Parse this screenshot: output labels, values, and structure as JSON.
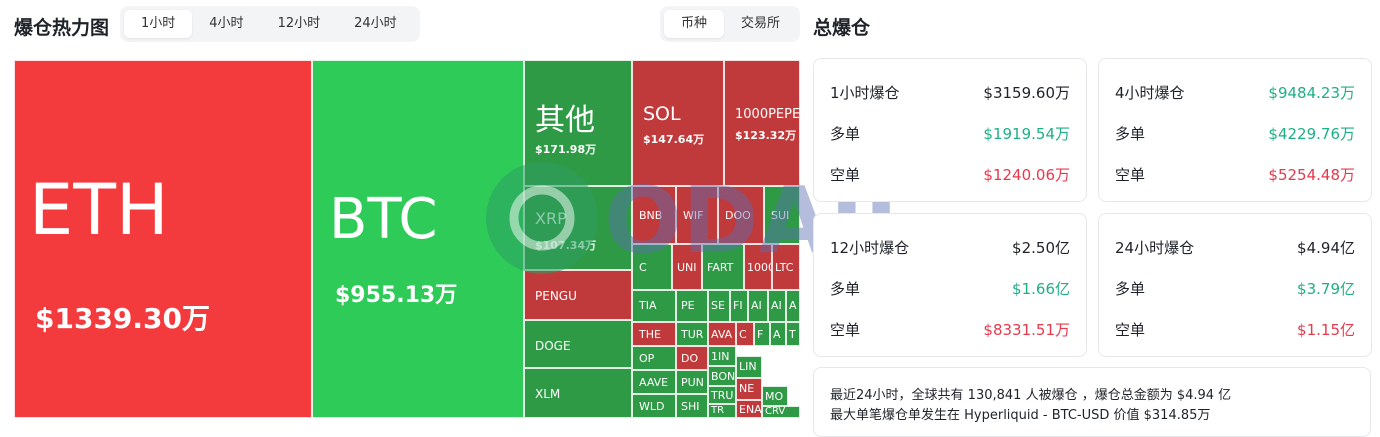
{
  "header": {
    "title": "爆仓热力图",
    "time_tabs": [
      "1小时",
      "4小时",
      "12小时",
      "24小时"
    ],
    "active_time_tab": "1小时",
    "group_tabs": [
      "币种",
      "交易所"
    ],
    "active_group_tab": "币种",
    "right_title": "总爆仓"
  },
  "treemap": {
    "colors": {
      "red": "#f33a3d",
      "green": "#2ecb59",
      "dark_red": "#c0393b",
      "dark_green": "#2f9a46"
    },
    "tiles": [
      {
        "symbol": "ETH",
        "value": "$1339.30万",
        "side": "short"
      },
      {
        "symbol": "BTC",
        "value": "$955.13万",
        "side": "long"
      },
      {
        "symbol": "其他",
        "value": "$171.98万",
        "side": "long"
      },
      {
        "symbol": "SOL",
        "value": "$147.64万",
        "side": "short"
      },
      {
        "symbol": "1000PEPE",
        "value": "$123.32万",
        "side": "short"
      },
      {
        "symbol": "XRP",
        "value": "$107.34万",
        "side": "long"
      },
      {
        "symbol": "PENGU",
        "value": "",
        "side": "short"
      },
      {
        "symbol": "DOGE",
        "value": "",
        "side": "long"
      },
      {
        "symbol": "XLM",
        "value": "",
        "side": "long"
      },
      {
        "symbol": "BNB",
        "value": "",
        "side": "short"
      },
      {
        "symbol": "WIF",
        "value": "",
        "side": "short"
      },
      {
        "symbol": "DOO",
        "value": "",
        "side": "short"
      },
      {
        "symbol": "SUI",
        "value": "",
        "side": "long"
      },
      {
        "symbol": "C",
        "value": "",
        "side": "long"
      },
      {
        "symbol": "UNI",
        "value": "",
        "side": "short"
      },
      {
        "symbol": "FART",
        "value": "",
        "side": "long"
      },
      {
        "symbol": "1000",
        "value": "",
        "side": "short"
      },
      {
        "symbol": "LTC",
        "value": "",
        "side": "short"
      },
      {
        "symbol": "TIA",
        "value": "",
        "side": "long"
      },
      {
        "symbol": "PE",
        "value": "",
        "side": "long"
      },
      {
        "symbol": "SE",
        "value": "",
        "side": "long"
      },
      {
        "symbol": "FI",
        "value": "",
        "side": "long"
      },
      {
        "symbol": "AI",
        "value": "",
        "side": "long"
      },
      {
        "symbol": "AI",
        "value": "",
        "side": "long"
      },
      {
        "symbol": "A",
        "value": "",
        "side": "long"
      },
      {
        "symbol": "THE",
        "value": "",
        "side": "short"
      },
      {
        "symbol": "TUR",
        "value": "",
        "side": "long"
      },
      {
        "symbol": "AVA",
        "value": "",
        "side": "short"
      },
      {
        "symbol": "C",
        "value": "",
        "side": "short"
      },
      {
        "symbol": "F",
        "value": "",
        "side": "long"
      },
      {
        "symbol": "A",
        "value": "",
        "side": "long"
      },
      {
        "symbol": "T",
        "value": "",
        "side": "long"
      },
      {
        "symbol": "OP",
        "value": "",
        "side": "long"
      },
      {
        "symbol": "DO",
        "value": "",
        "side": "short"
      },
      {
        "symbol": "1IN",
        "value": "",
        "side": "long"
      },
      {
        "symbol": "BON",
        "value": "",
        "side": "long"
      },
      {
        "symbol": "LIN",
        "value": "",
        "side": "long"
      },
      {
        "symbol": "NE",
        "value": "",
        "side": "short"
      },
      {
        "symbol": "AAVE",
        "value": "",
        "side": "long"
      },
      {
        "symbol": "PUN",
        "value": "",
        "side": "long"
      },
      {
        "symbol": "TRU",
        "value": "",
        "side": "long"
      },
      {
        "symbol": "TR",
        "value": "",
        "side": "long"
      },
      {
        "symbol": "MO",
        "value": "",
        "side": "long"
      },
      {
        "symbol": "WLD",
        "value": "",
        "side": "long"
      },
      {
        "symbol": "SHI",
        "value": "",
        "side": "long"
      },
      {
        "symbol": "ENA",
        "value": "",
        "side": "short"
      },
      {
        "symbol": "CRV",
        "value": "",
        "side": "long"
      }
    ]
  },
  "watermark": "ODAILY",
  "stats": [
    {
      "label": "1小时爆仓",
      "total": "$3159.60万",
      "long_label": "多单",
      "long": "$1919.54万",
      "short_label": "空单",
      "short": "$1240.06万"
    },
    {
      "label": "4小时爆仓",
      "total": "$9484.23万",
      "long_label": "多单",
      "long": "$4229.76万",
      "short_label": "空单",
      "short": "$5254.48万"
    },
    {
      "label": "12小时爆仓",
      "total": "$2.50亿",
      "long_label": "多单",
      "long": "$1.66亿",
      "short_label": "空单",
      "short": "$8331.51万"
    },
    {
      "label": "24小时爆仓",
      "total": "$4.94亿",
      "long_label": "多单",
      "long": "$3.79亿",
      "short_label": "空单",
      "short": "$1.15亿"
    }
  ],
  "summary": {
    "line1": "最近24小时，全球共有 130,841 人被爆仓 ，爆仓总金额为 $4.94 亿",
    "line2": "最大单笔爆仓单发生在 Hyperliquid - BTC-USD 价值 $314.85万"
  }
}
